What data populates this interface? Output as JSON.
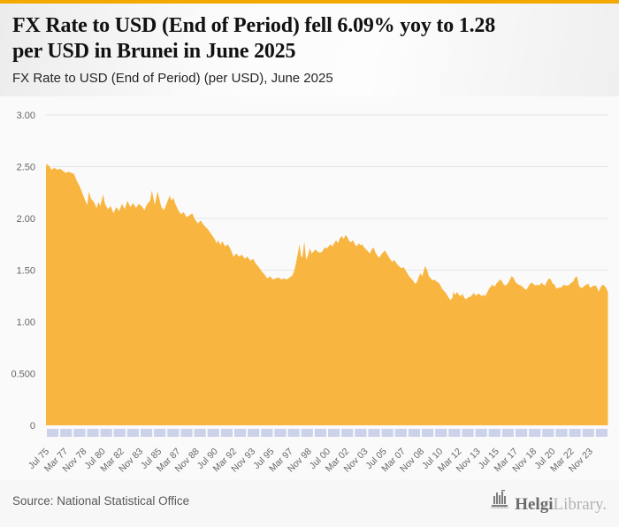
{
  "page": {
    "accent_bar_color": "#F2A902",
    "background_color": "#f7f7f7"
  },
  "header": {
    "title_line1": "FX Rate to USD (End of Period) fell 6.09% yoy to 1.28",
    "title_line2": "per USD in Brunei in June 2025",
    "subtitle": "FX Rate to USD (End of Period) (per USD), June 2025"
  },
  "footer": {
    "source": "Source: National Statistical Office",
    "logo": {
      "icon_name": "helgi-building-bars-icon",
      "text_primary": "Helgi",
      "text_secondary": "Library."
    }
  },
  "chart_data": {
    "type": "area",
    "title": "FX Rate to USD (End of Period) (per USD), June 2025",
    "xlabel": "",
    "ylabel": "",
    "unit": "per USD",
    "ylim": [
      0,
      3
    ],
    "xlim_years": [
      1975.5,
      2025.5
    ],
    "grid": true,
    "legend": "none",
    "grid_color": "#e5e5e5",
    "plot_bg": "#fafafa",
    "axis_band_color": "#cbd2ea",
    "y_ticks": [
      {
        "label": "3.00",
        "value": 3.0
      },
      {
        "label": "2.50",
        "value": 2.5
      },
      {
        "label": "2.00",
        "value": 2.0
      },
      {
        "label": "1.50",
        "value": 1.5
      },
      {
        "label": "1.00",
        "value": 1.0
      },
      {
        "label": "0.500",
        "value": 0.5
      },
      {
        "label": "0",
        "value": 0
      }
    ],
    "x_tick_labels": [
      "Jul 75",
      "Mar 77",
      "Nov 78",
      "Jul 80",
      "Mar 82",
      "Nov 83",
      "Jul 85",
      "Mar 87",
      "Nov 88",
      "Jul 90",
      "Mar 92",
      "Nov 93",
      "Jul 95",
      "Mar 97",
      "Nov 98",
      "Jul 00",
      "Mar 02",
      "Nov 03",
      "Jul 05",
      "Mar 07",
      "Nov 08",
      "Jul 10",
      "Mar 12",
      "Nov 13",
      "Jul 15",
      "Mar 17",
      "Nov 18",
      "Jul 20",
      "Mar 22",
      "Nov 23"
    ],
    "series": [
      {
        "name": "FX Rate to USD (End of Period), Brunei",
        "color": "#F8B640",
        "points": [
          [
            1975.5,
            2.5
          ],
          [
            1975.58,
            2.53
          ],
          [
            1975.75,
            2.51
          ],
          [
            1976,
            2.47
          ],
          [
            1976.25,
            2.49
          ],
          [
            1976.5,
            2.47
          ],
          [
            1976.75,
            2.48
          ],
          [
            1977,
            2.46
          ],
          [
            1977.25,
            2.44
          ],
          [
            1977.5,
            2.45
          ],
          [
            1977.75,
            2.44
          ],
          [
            1978,
            2.43
          ],
          [
            1978.25,
            2.36
          ],
          [
            1978.5,
            2.31
          ],
          [
            1978.75,
            2.24
          ],
          [
            1979,
            2.17
          ],
          [
            1979.17,
            2.13
          ],
          [
            1979.33,
            2.26
          ],
          [
            1979.5,
            2.19
          ],
          [
            1979.75,
            2.16
          ],
          [
            1980,
            2.1
          ],
          [
            1980.17,
            2.16
          ],
          [
            1980.33,
            2.12
          ],
          [
            1980.58,
            2.23
          ],
          [
            1980.75,
            2.14
          ],
          [
            1981,
            2.09
          ],
          [
            1981.25,
            2.12
          ],
          [
            1981.5,
            2.05
          ],
          [
            1981.75,
            2.11
          ],
          [
            1982,
            2.07
          ],
          [
            1982.25,
            2.14
          ],
          [
            1982.5,
            2.09
          ],
          [
            1982.75,
            2.17
          ],
          [
            1983,
            2.11
          ],
          [
            1983.25,
            2.15
          ],
          [
            1983.5,
            2.1
          ],
          [
            1983.75,
            2.14
          ],
          [
            1984,
            2.12
          ],
          [
            1984.25,
            2.08
          ],
          [
            1984.5,
            2.14
          ],
          [
            1984.75,
            2.17
          ],
          [
            1984.92,
            2.27
          ],
          [
            1985.17,
            2.13
          ],
          [
            1985.42,
            2.26
          ],
          [
            1985.58,
            2.19
          ],
          [
            1985.75,
            2.11
          ],
          [
            1986,
            2.08
          ],
          [
            1986.25,
            2.15
          ],
          [
            1986.5,
            2.22
          ],
          [
            1986.67,
            2.17
          ],
          [
            1986.83,
            2.2
          ],
          [
            1987,
            2.14
          ],
          [
            1987.25,
            2.08
          ],
          [
            1987.5,
            2.04
          ],
          [
            1987.75,
            2.06
          ],
          [
            1988,
            2.01
          ],
          [
            1988.25,
            2.03
          ],
          [
            1988.5,
            2.05
          ],
          [
            1988.75,
            1.99
          ],
          [
            1989,
            1.95
          ],
          [
            1989.25,
            1.98
          ],
          [
            1989.5,
            1.94
          ],
          [
            1989.75,
            1.91
          ],
          [
            1990,
            1.88
          ],
          [
            1990.25,
            1.84
          ],
          [
            1990.5,
            1.8
          ],
          [
            1990.67,
            1.76
          ],
          [
            1990.83,
            1.79
          ],
          [
            1991,
            1.74
          ],
          [
            1991.17,
            1.78
          ],
          [
            1991.42,
            1.73
          ],
          [
            1991.67,
            1.75
          ],
          [
            1991.92,
            1.7
          ],
          [
            1992.17,
            1.63
          ],
          [
            1992.42,
            1.66
          ],
          [
            1992.67,
            1.63
          ],
          [
            1992.92,
            1.65
          ],
          [
            1993.17,
            1.61
          ],
          [
            1993.42,
            1.63
          ],
          [
            1993.67,
            1.59
          ],
          [
            1993.92,
            1.61
          ],
          [
            1994.17,
            1.56
          ],
          [
            1994.42,
            1.53
          ],
          [
            1994.67,
            1.49
          ],
          [
            1994.92,
            1.46
          ],
          [
            1995.17,
            1.42
          ],
          [
            1995.42,
            1.44
          ],
          [
            1995.67,
            1.41
          ],
          [
            1995.92,
            1.42
          ],
          [
            1996.17,
            1.43
          ],
          [
            1996.42,
            1.41
          ],
          [
            1996.67,
            1.42
          ],
          [
            1996.92,
            1.41
          ],
          [
            1997.17,
            1.43
          ],
          [
            1997.42,
            1.45
          ],
          [
            1997.58,
            1.5
          ],
          [
            1997.75,
            1.58
          ],
          [
            1997.92,
            1.68
          ],
          [
            1998.04,
            1.75
          ],
          [
            1998.17,
            1.64
          ],
          [
            1998.29,
            1.62
          ],
          [
            1998.46,
            1.78
          ],
          [
            1998.63,
            1.6
          ],
          [
            1998.79,
            1.64
          ],
          [
            1998.96,
            1.71
          ],
          [
            1999.13,
            1.66
          ],
          [
            1999.29,
            1.68
          ],
          [
            1999.46,
            1.7
          ],
          [
            1999.63,
            1.68
          ],
          [
            1999.79,
            1.67
          ],
          [
            1999.96,
            1.67
          ],
          [
            2000.13,
            1.69
          ],
          [
            2000.29,
            1.72
          ],
          [
            2000.46,
            1.71
          ],
          [
            2000.63,
            1.73
          ],
          [
            2000.79,
            1.75
          ],
          [
            2000.96,
            1.73
          ],
          [
            2001.13,
            1.76
          ],
          [
            2001.29,
            1.79
          ],
          [
            2001.46,
            1.76
          ],
          [
            2001.63,
            1.81
          ],
          [
            2001.79,
            1.83
          ],
          [
            2001.96,
            1.8
          ],
          [
            2002.13,
            1.84
          ],
          [
            2002.29,
            1.82
          ],
          [
            2002.46,
            1.78
          ],
          [
            2002.63,
            1.77
          ],
          [
            2002.79,
            1.79
          ],
          [
            2002.96,
            1.75
          ],
          [
            2003.13,
            1.73
          ],
          [
            2003.29,
            1.76
          ],
          [
            2003.46,
            1.74
          ],
          [
            2003.63,
            1.75
          ],
          [
            2003.79,
            1.72
          ],
          [
            2003.96,
            1.7
          ],
          [
            2004.13,
            1.68
          ],
          [
            2004.29,
            1.66
          ],
          [
            2004.46,
            1.7
          ],
          [
            2004.63,
            1.72
          ],
          [
            2004.79,
            1.67
          ],
          [
            2004.96,
            1.64
          ],
          [
            2005.13,
            1.62
          ],
          [
            2005.29,
            1.65
          ],
          [
            2005.46,
            1.67
          ],
          [
            2005.63,
            1.69
          ],
          [
            2005.79,
            1.66
          ],
          [
            2005.96,
            1.63
          ],
          [
            2006.13,
            1.6
          ],
          [
            2006.29,
            1.58
          ],
          [
            2006.46,
            1.6
          ],
          [
            2006.63,
            1.57
          ],
          [
            2006.79,
            1.55
          ],
          [
            2006.96,
            1.53
          ],
          [
            2007.13,
            1.52
          ],
          [
            2007.29,
            1.53
          ],
          [
            2007.46,
            1.5
          ],
          [
            2007.63,
            1.47
          ],
          [
            2007.79,
            1.44
          ],
          [
            2007.96,
            1.42
          ],
          [
            2008.13,
            1.4
          ],
          [
            2008.29,
            1.37
          ],
          [
            2008.46,
            1.38
          ],
          [
            2008.63,
            1.43
          ],
          [
            2008.79,
            1.47
          ],
          [
            2008.96,
            1.44
          ],
          [
            2009.08,
            1.49
          ],
          [
            2009.21,
            1.54
          ],
          [
            2009.38,
            1.5
          ],
          [
            2009.54,
            1.44
          ],
          [
            2009.71,
            1.42
          ],
          [
            2009.88,
            1.4
          ],
          [
            2010.04,
            1.41
          ],
          [
            2010.21,
            1.39
          ],
          [
            2010.38,
            1.38
          ],
          [
            2010.54,
            1.36
          ],
          [
            2010.71,
            1.32
          ],
          [
            2010.88,
            1.3
          ],
          [
            2011.04,
            1.28
          ],
          [
            2011.21,
            1.25
          ],
          [
            2011.46,
            1.21
          ],
          [
            2011.63,
            1.23
          ],
          [
            2011.71,
            1.29
          ],
          [
            2011.88,
            1.26
          ],
          [
            2012.04,
            1.29
          ],
          [
            2012.21,
            1.26
          ],
          [
            2012.38,
            1.25
          ],
          [
            2012.54,
            1.27
          ],
          [
            2012.71,
            1.23
          ],
          [
            2012.88,
            1.22
          ],
          [
            2013.04,
            1.24
          ],
          [
            2013.21,
            1.24
          ],
          [
            2013.38,
            1.26
          ],
          [
            2013.54,
            1.28
          ],
          [
            2013.71,
            1.25
          ],
          [
            2013.88,
            1.27
          ],
          [
            2014.04,
            1.27
          ],
          [
            2014.21,
            1.25
          ],
          [
            2014.38,
            1.26
          ],
          [
            2014.54,
            1.25
          ],
          [
            2014.71,
            1.28
          ],
          [
            2014.88,
            1.32
          ],
          [
            2015.04,
            1.34
          ],
          [
            2015.21,
            1.36
          ],
          [
            2015.38,
            1.34
          ],
          [
            2015.54,
            1.37
          ],
          [
            2015.71,
            1.39
          ],
          [
            2015.88,
            1.41
          ],
          [
            2016.04,
            1.39
          ],
          [
            2016.21,
            1.36
          ],
          [
            2016.38,
            1.35
          ],
          [
            2016.54,
            1.37
          ],
          [
            2016.71,
            1.4
          ],
          [
            2016.88,
            1.44
          ],
          [
            2017.04,
            1.43
          ],
          [
            2017.21,
            1.39
          ],
          [
            2017.38,
            1.37
          ],
          [
            2017.54,
            1.36
          ],
          [
            2017.71,
            1.35
          ],
          [
            2017.88,
            1.34
          ],
          [
            2018.04,
            1.32
          ],
          [
            2018.21,
            1.31
          ],
          [
            2018.38,
            1.34
          ],
          [
            2018.54,
            1.37
          ],
          [
            2018.71,
            1.38
          ],
          [
            2018.88,
            1.36
          ],
          [
            2019.04,
            1.35
          ],
          [
            2019.21,
            1.36
          ],
          [
            2019.38,
            1.35
          ],
          [
            2019.54,
            1.38
          ],
          [
            2019.71,
            1.36
          ],
          [
            2019.88,
            1.35
          ],
          [
            2020.04,
            1.39
          ],
          [
            2020.21,
            1.42
          ],
          [
            2020.38,
            1.41
          ],
          [
            2020.54,
            1.37
          ],
          [
            2020.71,
            1.36
          ],
          [
            2020.88,
            1.32
          ],
          [
            2021.04,
            1.33
          ],
          [
            2021.21,
            1.33
          ],
          [
            2021.38,
            1.34
          ],
          [
            2021.54,
            1.36
          ],
          [
            2021.71,
            1.35
          ],
          [
            2021.88,
            1.35
          ],
          [
            2022.04,
            1.36
          ],
          [
            2022.21,
            1.38
          ],
          [
            2022.38,
            1.39
          ],
          [
            2022.54,
            1.43
          ],
          [
            2022.71,
            1.44
          ],
          [
            2022.88,
            1.35
          ],
          [
            2023.04,
            1.33
          ],
          [
            2023.21,
            1.33
          ],
          [
            2023.38,
            1.35
          ],
          [
            2023.54,
            1.36
          ],
          [
            2023.71,
            1.37
          ],
          [
            2023.88,
            1.33
          ],
          [
            2024.04,
            1.34
          ],
          [
            2024.21,
            1.35
          ],
          [
            2024.38,
            1.35
          ],
          [
            2024.54,
            1.32
          ],
          [
            2024.63,
            1.29
          ],
          [
            2024.79,
            1.33
          ],
          [
            2024.96,
            1.36
          ],
          [
            2025.13,
            1.35
          ],
          [
            2025.29,
            1.33
          ],
          [
            2025.38,
            1.31
          ],
          [
            2025.46,
            1.28
          ]
        ]
      }
    ]
  }
}
